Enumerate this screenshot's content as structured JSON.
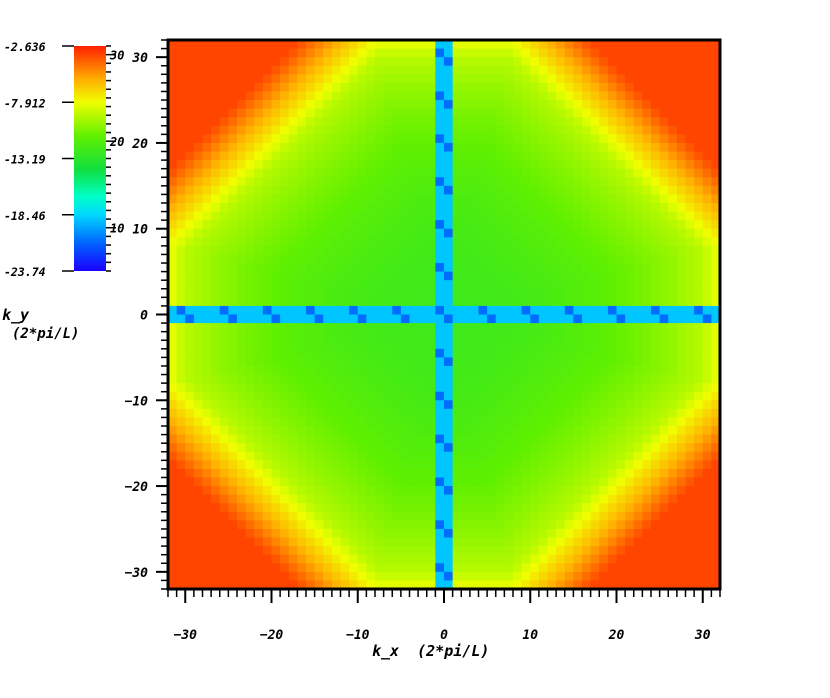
{
  "chart_data": {
    "type": "heatmap",
    "title": "",
    "xlabel": "k_x  (2*pi/L)",
    "ylabel_line1": "k_y",
    "ylabel_line2": "(2*pi/L)",
    "xlim": [
      -32,
      32
    ],
    "ylim": [
      -32,
      32
    ],
    "x_ticks": [
      -30,
      -20,
      -10,
      0,
      10,
      20,
      30
    ],
    "y_ticks": [
      30,
      20,
      10,
      0,
      -10,
      -20,
      -30
    ],
    "grid": false,
    "grid_resolution": 64,
    "colorbar": {
      "ticks": [
        10,
        20,
        30
      ],
      "side_labels": [
        "-2.636",
        "-7.912",
        "-13.19",
        "-18.46",
        "-23.74"
      ],
      "range": [
        5,
        31
      ],
      "colormap": "rainbow (blue-cyan-green-yellow-red)"
    },
    "field": {
      "description": "Intensity vs (k_x, k_y): ~20 near center, rising toward ~23-24 at mid distances and ~30 at the corners with octagonal contours; low-valued cross along the k_x = 0 and k_y = 0 axes",
      "center_value": 19,
      "edge_mid_value": 23,
      "corner_value": 30,
      "axis_line_value": 11,
      "axis_line_min_value": 7
    }
  },
  "colors": {
    "background": "#ffffff",
    "frame": "#000000",
    "colormap_stops": [
      "#1a00ff",
      "#00c8ff",
      "#00ffd8",
      "#22e62a",
      "#5af000",
      "#e8ff00",
      "#ffd800",
      "#ff8000",
      "#ff2000"
    ]
  }
}
